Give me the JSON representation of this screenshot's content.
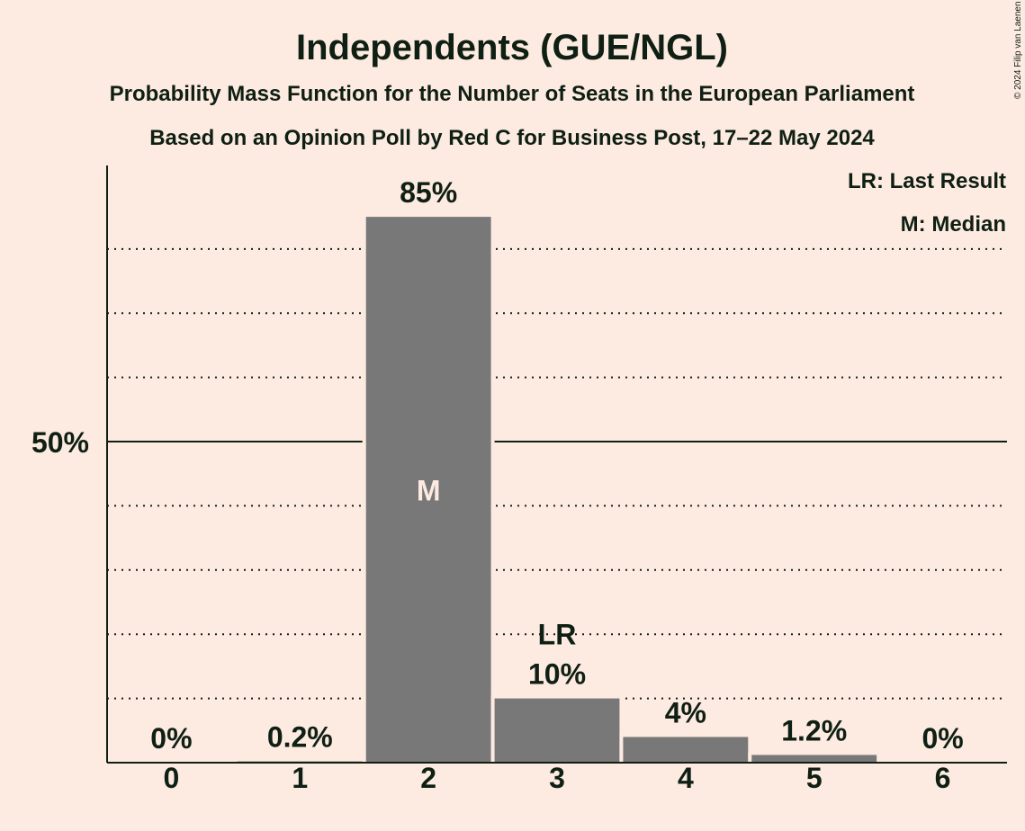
{
  "chart_data": {
    "type": "bar",
    "title": "Independents (GUE/NGL)",
    "subtitle": "Probability Mass Function for the Number of Seats in the European Parliament",
    "subtitle2": "Based on an Opinion Poll by Red C for Business Post, 17–22 May 2024",
    "categories": [
      "0",
      "1",
      "2",
      "3",
      "4",
      "5",
      "6"
    ],
    "values": [
      0,
      0.2,
      85,
      10,
      4,
      1.2,
      0
    ],
    "value_labels": [
      "0%",
      "0.2%",
      "85%",
      "10%",
      "4%",
      "1.2%",
      "0%"
    ],
    "ylim": [
      0,
      93
    ],
    "y_ticks": [
      {
        "value": 50,
        "label": "50%"
      }
    ],
    "gridlines": [
      10,
      20,
      30,
      40,
      60,
      70,
      80
    ],
    "median_index": 2,
    "median_marker": "M",
    "last_result_index": 3,
    "last_result_marker": "LR",
    "legend": {
      "placement": "top-right",
      "items": [
        "LR: Last Result",
        "M: Median"
      ]
    },
    "copyright": "© 2024 Filip van Laenen",
    "colors": {
      "background": "#fdebe1",
      "bar": "#787878",
      "text": "#0f1f14",
      "median_text": "#fdebe1"
    }
  }
}
